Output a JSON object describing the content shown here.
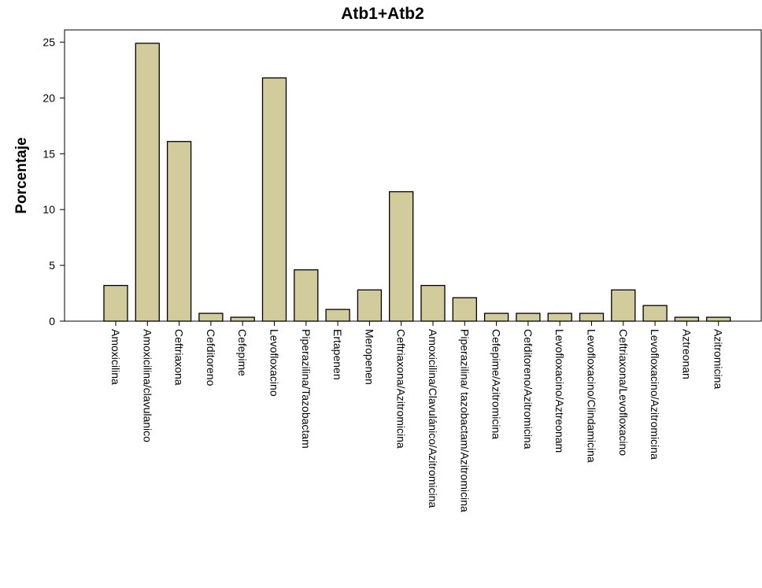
{
  "chart_data": {
    "type": "bar",
    "title": "Atb1+Atb2",
    "ylabel": "Porcentaje",
    "xlabel": "",
    "ylim": [
      0,
      26.1
    ],
    "yticks": [
      0,
      5,
      10,
      15,
      20,
      25
    ],
    "grid": false,
    "bar_color": "#d2cc9c",
    "categories": [
      "Amoxicilina",
      "Amoxicilina/clavulanico",
      "Ceftriaxona",
      "Cefditoreno",
      "Cefepime",
      "Levofloxacino",
      "Piperazilina/Tazobactam",
      "Ertapenen",
      "Meropenen",
      "Ceftriaxona/Azitromicina",
      "Amoxicilina/Clavulánico/Azitromicina",
      "Piperazilina/ tazobactam/Azitromicina",
      "Cefepime/Azitromicina",
      "Cefditoreno/Azitromicina",
      "Levofloxacino/Aztreonam",
      "Levofloxacino/Clindamicina",
      "Ceftriaxona/Levofloxacino",
      "Levofloxacino/Azitromicina",
      "Aztreonan",
      "Azitromicina"
    ],
    "values": [
      3.2,
      24.9,
      16.1,
      0.7,
      0.35,
      21.8,
      4.6,
      1.05,
      2.8,
      11.6,
      3.2,
      2.1,
      0.7,
      0.7,
      0.7,
      0.7,
      2.8,
      1.4,
      0.35,
      0.35
    ]
  }
}
